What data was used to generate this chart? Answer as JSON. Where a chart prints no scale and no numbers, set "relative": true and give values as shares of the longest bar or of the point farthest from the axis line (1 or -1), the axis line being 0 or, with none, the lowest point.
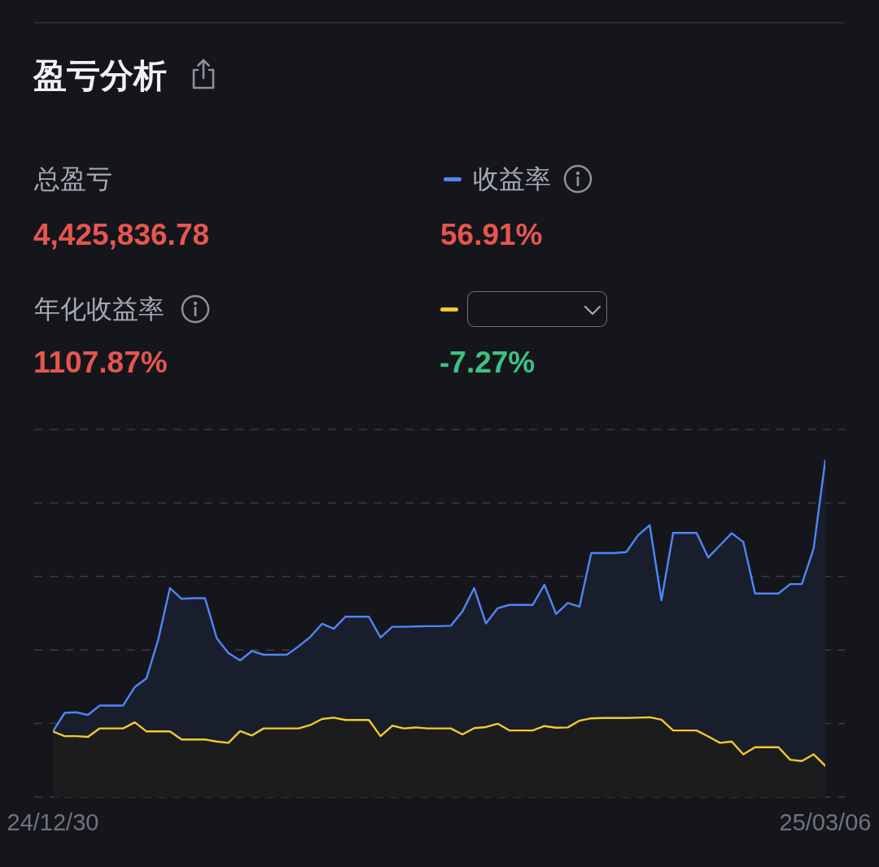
{
  "chart_data": {
    "type": "area",
    "title": "盈亏分析",
    "relative": true,
    "grid": "y",
    "legend": "top right",
    "annotations": [
      "总盈亏",
      "4,425,836.78",
      "年化收益率",
      "1107.87%",
      "56.91%",
      "-7.27%"
    ],
    "categories": [
      "24/12/30",
      null,
      null,
      null,
      null,
      null,
      null,
      null,
      null,
      null,
      null,
      null,
      null,
      null,
      null,
      null,
      null,
      null,
      null,
      null,
      null,
      null,
      null,
      null,
      null,
      null,
      null,
      null,
      null,
      null,
      null,
      null,
      null,
      null,
      null,
      null,
      null,
      null,
      null,
      null,
      null,
      null,
      null,
      null,
      null,
      null,
      null,
      null,
      null,
      null,
      null,
      null,
      null,
      null,
      null,
      null,
      null,
      null,
      null,
      null,
      null,
      null,
      null,
      null,
      null,
      null,
      "25/03/06"
    ],
    "series": [
      {
        "name": "收益率",
        "color": "#4f86f7",
        "values": [
          0.195,
          0.25,
          0.252,
          0.244,
          0.272,
          0.272,
          0.272,
          0.327,
          0.353,
          0.468,
          0.621,
          0.589,
          0.591,
          0.591,
          0.472,
          0.428,
          0.406,
          0.434,
          0.423,
          0.423,
          0.423,
          0.448,
          0.476,
          0.515,
          0.5,
          0.536,
          0.536,
          0.536,
          0.474,
          0.506,
          0.506,
          0.507,
          0.508,
          0.508,
          0.509,
          0.552,
          0.621,
          0.516,
          0.561,
          0.571,
          0.571,
          0.571,
          0.631,
          0.544,
          0.577,
          0.566,
          0.725,
          0.725,
          0.725,
          0.728,
          0.778,
          0.808,
          0.585,
          0.785,
          0.785,
          0.785,
          0.712,
          0.748,
          0.784,
          0.758,
          0.605,
          0.605,
          0.605,
          0.633,
          0.633,
          0.738,
          1
        ]
      },
      {
        "color": "#f2cb2c",
        "values": [
          0.195,
          0.181,
          0.181,
          0.179,
          0.204,
          0.204,
          0.204,
          0.222,
          0.195,
          0.195,
          0.195,
          0.171,
          0.171,
          0.171,
          0.165,
          0.161,
          0.196,
          0.183,
          0.204,
          0.204,
          0.204,
          0.204,
          0.214,
          0.232,
          0.236,
          0.229,
          0.229,
          0.229,
          0.181,
          0.212,
          0.204,
          0.207,
          0.204,
          0.204,
          0.204,
          0.186,
          0.205,
          0.208,
          0.218,
          0.198,
          0.198,
          0.198,
          0.211,
          0.206,
          0.207,
          0.227,
          0.234,
          0.235,
          0.235,
          0.235,
          0.236,
          0.237,
          0.23,
          0.198,
          0.198,
          0.198,
          0.18,
          0.161,
          0.165,
          0.127,
          0.148,
          0.148,
          0.148,
          0.111,
          0.107,
          0.127,
          0.093
        ]
      }
    ]
  }
}
